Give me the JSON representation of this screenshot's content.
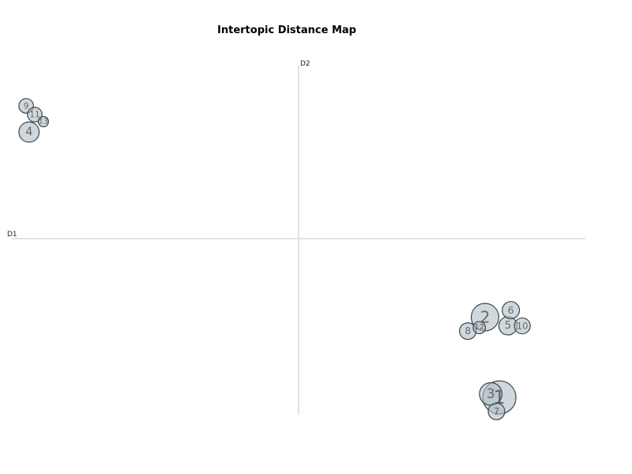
{
  "chart_data": {
    "type": "scatter",
    "title": "Intertopic Distance Map",
    "xlabel": "D1",
    "ylabel": "D2",
    "xlim": [
      -10,
      10
    ],
    "ylim": [
      -10,
      10
    ],
    "grid": false,
    "legend": "none",
    "points": [
      {
        "label": "1",
        "x": 7.0,
        "y": -9.1,
        "size": 1.0
      },
      {
        "label": "2",
        "x": 6.5,
        "y": -4.5,
        "size": 0.83
      },
      {
        "label": "3",
        "x": 6.7,
        "y": -8.9,
        "size": 0.68
      },
      {
        "label": "4",
        "x": -9.4,
        "y": 6.1,
        "size": 0.61
      },
      {
        "label": "5",
        "x": 7.3,
        "y": -5.0,
        "size": 0.55
      },
      {
        "label": "6",
        "x": 7.4,
        "y": -4.1,
        "size": 0.52
      },
      {
        "label": "7",
        "x": 6.9,
        "y": -9.9,
        "size": 0.5
      },
      {
        "label": "8",
        "x": 5.9,
        "y": -5.3,
        "size": 0.5
      },
      {
        "label": "9",
        "x": -9.5,
        "y": 7.6,
        "size": 0.44
      },
      {
        "label": "10",
        "x": 7.8,
        "y": -5.0,
        "size": 0.48
      },
      {
        "label": "11",
        "x": -9.2,
        "y": 7.1,
        "size": 0.44
      },
      {
        "label": "12",
        "x": 6.3,
        "y": -5.1,
        "size": 0.37
      },
      {
        "label": "13",
        "x": -8.9,
        "y": 6.7,
        "size": 0.31
      }
    ]
  }
}
